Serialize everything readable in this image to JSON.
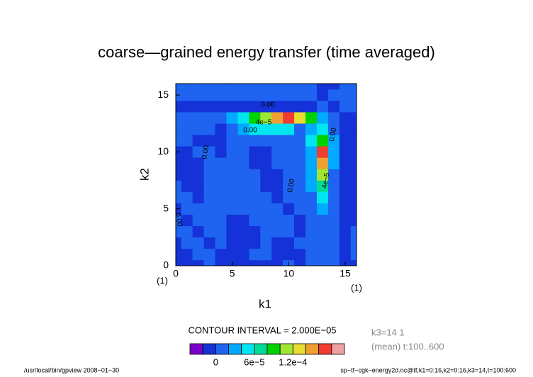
{
  "chart_data": {
    "type": "contour",
    "title": "coarse—grained energy transfer (time averaged)",
    "x_label": "k1",
    "y_label": "k2",
    "x_corner_labels": [
      "(1)",
      "(1)"
    ],
    "xlim": [
      0,
      16
    ],
    "ylim": [
      0,
      16
    ],
    "xticks": [
      0,
      5,
      10,
      15
    ],
    "yticks": [
      0,
      5,
      10,
      15
    ],
    "contour_interval_text": "CONTOUR INTERVAL = 2.000E−05",
    "contour_labels": [
      "4e−5",
      "0.00",
      "4e−5",
      "0.00",
      "0.00",
      "0.00",
      "0.00",
      "0.00"
    ],
    "info_lines": [
      "k3=14 1",
      "(mean) t:100..600"
    ],
    "footer_left": "/usr/local/bin/gpview   2008−01−30",
    "footer_right": "sp−tf−cgk−energy2d.nc@tf,k1=0:16,k2=0:16,k3=14,t=100:600",
    "levels": [
      -2e-05,
      0,
      2e-05,
      4e-05,
      6e-05,
      8e-05,
      0.0001,
      0.00012,
      0.00014,
      0.00016,
      0.00018
    ],
    "colors": [
      "#7a00c8",
      "#1432d8",
      "#1e64f0",
      "#00aaff",
      "#00e6f0",
      "#00dc96",
      "#00d200",
      "#a0e632",
      "#e6dc32",
      "#f0a032",
      "#f03c32",
      "#f0a0a0"
    ],
    "colorbar_labels": [
      0,
      {
        "value": 6e-05,
        "label": "6e−5"
      },
      {
        "value": 0.00012,
        "label": "1.2e−4"
      }
    ],
    "z": [
      [
        -1e-05,
        -1e-05,
        -1e-05,
        1e-05,
        -1e-05,
        -1e-05,
        -1e-05,
        -1e-05,
        -1e-05,
        -1e-05,
        1e-05,
        -1e-05,
        1e-05,
        1e-05,
        1e-05,
        -1e-05,
        -1e-05
      ],
      [
        -1e-05,
        -1e-05,
        1e-05,
        1e-05,
        -1e-05,
        -1e-05,
        -1e-05,
        1e-05,
        1e-05,
        -1e-05,
        -1e-05,
        -1e-05,
        1e-05,
        1e-05,
        1e-05,
        -1e-05,
        1e-05
      ],
      [
        -1e-05,
        1e-05,
        1e-05,
        -1e-05,
        1e-05,
        -1e-05,
        -1e-05,
        -1e-05,
        1e-05,
        -1e-05,
        -1e-05,
        1e-05,
        1e-05,
        1e-05,
        1e-05,
        -1e-05,
        1e-05
      ],
      [
        1e-05,
        1e-05,
        -1e-05,
        1e-05,
        1e-05,
        -1e-05,
        -1e-05,
        -1e-05,
        1e-05,
        1e-05,
        1e-05,
        -1e-05,
        1e-05,
        1e-05,
        1e-05,
        -1e-05,
        1e-05
      ],
      [
        1e-05,
        -1e-05,
        1e-05,
        1e-05,
        1e-05,
        -1e-05,
        -1e-05,
        1e-05,
        1e-05,
        1e-05,
        1e-05,
        -1e-05,
        1e-05,
        1e-05,
        1e-05,
        -1e-05,
        -1e-05
      ],
      [
        -1e-05,
        1e-05,
        1e-05,
        1e-05,
        1e-05,
        1e-05,
        1e-05,
        1e-05,
        1e-05,
        1e-05,
        -1e-05,
        1e-05,
        1e-05,
        3e-05,
        1e-05,
        -1e-05,
        -1e-05
      ],
      [
        1e-05,
        1e-05,
        -1e-05,
        1e-05,
        1e-05,
        1e-05,
        1e-05,
        1e-05,
        1e-05,
        -1e-05,
        1e-05,
        1e-05,
        1e-05,
        5e-05,
        1e-05,
        -1e-05,
        -1e-05
      ],
      [
        1e-05,
        -1e-05,
        -1e-05,
        1e-05,
        1e-05,
        1e-05,
        1e-05,
        1e-05,
        -1e-05,
        -1e-05,
        1e-05,
        1e-05,
        3e-05,
        7e-05,
        1e-05,
        -1e-05,
        -1e-05
      ],
      [
        -1e-05,
        -1e-05,
        -1e-05,
        1e-05,
        1e-05,
        1e-05,
        1e-05,
        1e-05,
        -1e-05,
        -1e-05,
        1e-05,
        1e-05,
        3e-05,
        0.00011,
        1e-05,
        -1e-05,
        -1e-05
      ],
      [
        -1e-05,
        -1e-05,
        -1e-05,
        1e-05,
        1e-05,
        1e-05,
        1e-05,
        -1e-05,
        -1e-05,
        1e-05,
        1e-05,
        1e-05,
        3e-05,
        0.00015,
        3e-05,
        -1e-05,
        -1e-05
      ],
      [
        -1e-05,
        -1e-05,
        1e-05,
        1e-05,
        -1e-05,
        1e-05,
        1e-05,
        -1e-05,
        -1e-05,
        1e-05,
        1e-05,
        1e-05,
        3e-05,
        0.00017,
        3e-05,
        -1e-05,
        -1e-05
      ],
      [
        1e-05,
        1e-05,
        -1e-05,
        -1e-05,
        -1e-05,
        1e-05,
        1e-05,
        1e-05,
        1e-05,
        1e-05,
        1e-05,
        1e-05,
        5e-05,
        9e-05,
        3e-05,
        -1e-05,
        -1e-05
      ],
      [
        1e-05,
        1e-05,
        1e-05,
        1e-05,
        -1e-05,
        1e-05,
        3e-05,
        5e-05,
        5e-05,
        5e-05,
        5e-05,
        1e-05,
        3e-05,
        5e-05,
        1e-05,
        -1e-05,
        -1e-05
      ],
      [
        1e-05,
        1e-05,
        1e-05,
        1e-05,
        1e-05,
        3e-05,
        5e-05,
        9e-05,
        0.00011,
        0.00015,
        0.00017,
        0.00013,
        9e-05,
        3e-05,
        1e-05,
        -1e-05,
        -1e-05
      ],
      [
        -1e-05,
        -1e-05,
        -1e-05,
        -1e-05,
        -1e-05,
        -1e-05,
        -1e-05,
        -1e-05,
        -1e-05,
        -1e-05,
        -1e-05,
        -1e-05,
        -1e-05,
        1e-05,
        -1e-05,
        1e-05,
        1e-05
      ],
      [
        1e-05,
        1e-05,
        1e-05,
        1e-05,
        1e-05,
        1e-05,
        1e-05,
        1e-05,
        1e-05,
        1e-05,
        1e-05,
        1e-05,
        1e-05,
        -1e-05,
        1e-05,
        1e-05,
        1e-05
      ],
      [
        1e-05,
        1e-05,
        1e-05,
        1e-05,
        1e-05,
        1e-05,
        1e-05,
        1e-05,
        1e-05,
        1e-05,
        1e-05,
        1e-05,
        1e-05,
        -1e-05,
        -1e-05,
        1e-05,
        1e-05
      ]
    ]
  }
}
